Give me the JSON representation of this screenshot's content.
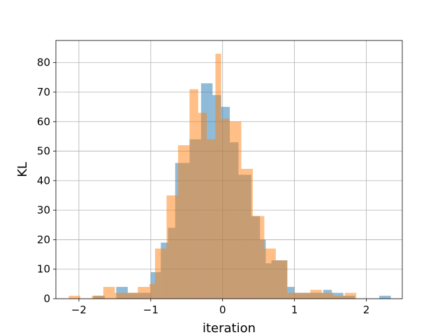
{
  "chart_data": {
    "type": "bar",
    "subtype": "histogram-overlay",
    "title": "",
    "xlabel": "iteration",
    "ylabel": "KL",
    "xlim": [
      -2.32,
      2.5
    ],
    "ylim": [
      0,
      87.5
    ],
    "xticks": [
      -2,
      -1,
      0,
      1,
      2
    ],
    "yticks": [
      0,
      10,
      20,
      30,
      40,
      50,
      60,
      70,
      80
    ],
    "xtick_labels": [
      "−2",
      "−1",
      "0",
      "1",
      "2"
    ],
    "ytick_labels": [
      "0",
      "10",
      "20",
      "30",
      "40",
      "50",
      "60",
      "70",
      "80"
    ],
    "grid": true,
    "legend": "none",
    "series": [
      {
        "color": "#1f77b4",
        "alpha": 0.5,
        "bin_edges": [
          -1.96,
          -1.8,
          -1.64,
          -1.48,
          -1.32,
          -1.16,
          -1.0,
          -0.86,
          -0.76,
          -0.66,
          -0.46,
          -0.3,
          -0.14,
          -0.02,
          0.1,
          0.22,
          0.4,
          0.52,
          0.6,
          0.68,
          0.9,
          1.0,
          1.16,
          1.4,
          1.52,
          1.68,
          1.84,
          2.18,
          2.34
        ],
        "counts": [
          0,
          1,
          0,
          4,
          2,
          2,
          9,
          19,
          24,
          46,
          54,
          73,
          69,
          65,
          53,
          42,
          28,
          20,
          12,
          13,
          4,
          2,
          2,
          3,
          2,
          1,
          0,
          1
        ]
      },
      {
        "color": "#ff7f0e",
        "alpha": 0.5,
        "bin_edges": [
          -2.14,
          -1.98,
          -1.82,
          -1.66,
          -1.5,
          -1.34,
          -1.18,
          -1.02,
          -0.94,
          -0.78,
          -0.62,
          -0.46,
          -0.34,
          -0.22,
          -0.1,
          -0.02,
          0.1,
          0.26,
          0.42,
          0.58,
          0.74,
          0.9,
          1.06,
          1.22,
          1.38,
          1.54,
          1.7,
          1.86
        ],
        "counts": [
          1,
          0,
          1,
          4,
          2,
          2,
          4,
          5,
          17,
          35,
          52,
          71,
          63,
          54,
          83,
          61,
          60,
          44,
          28,
          17,
          13,
          2,
          2,
          3,
          2,
          1,
          2
        ]
      }
    ]
  }
}
